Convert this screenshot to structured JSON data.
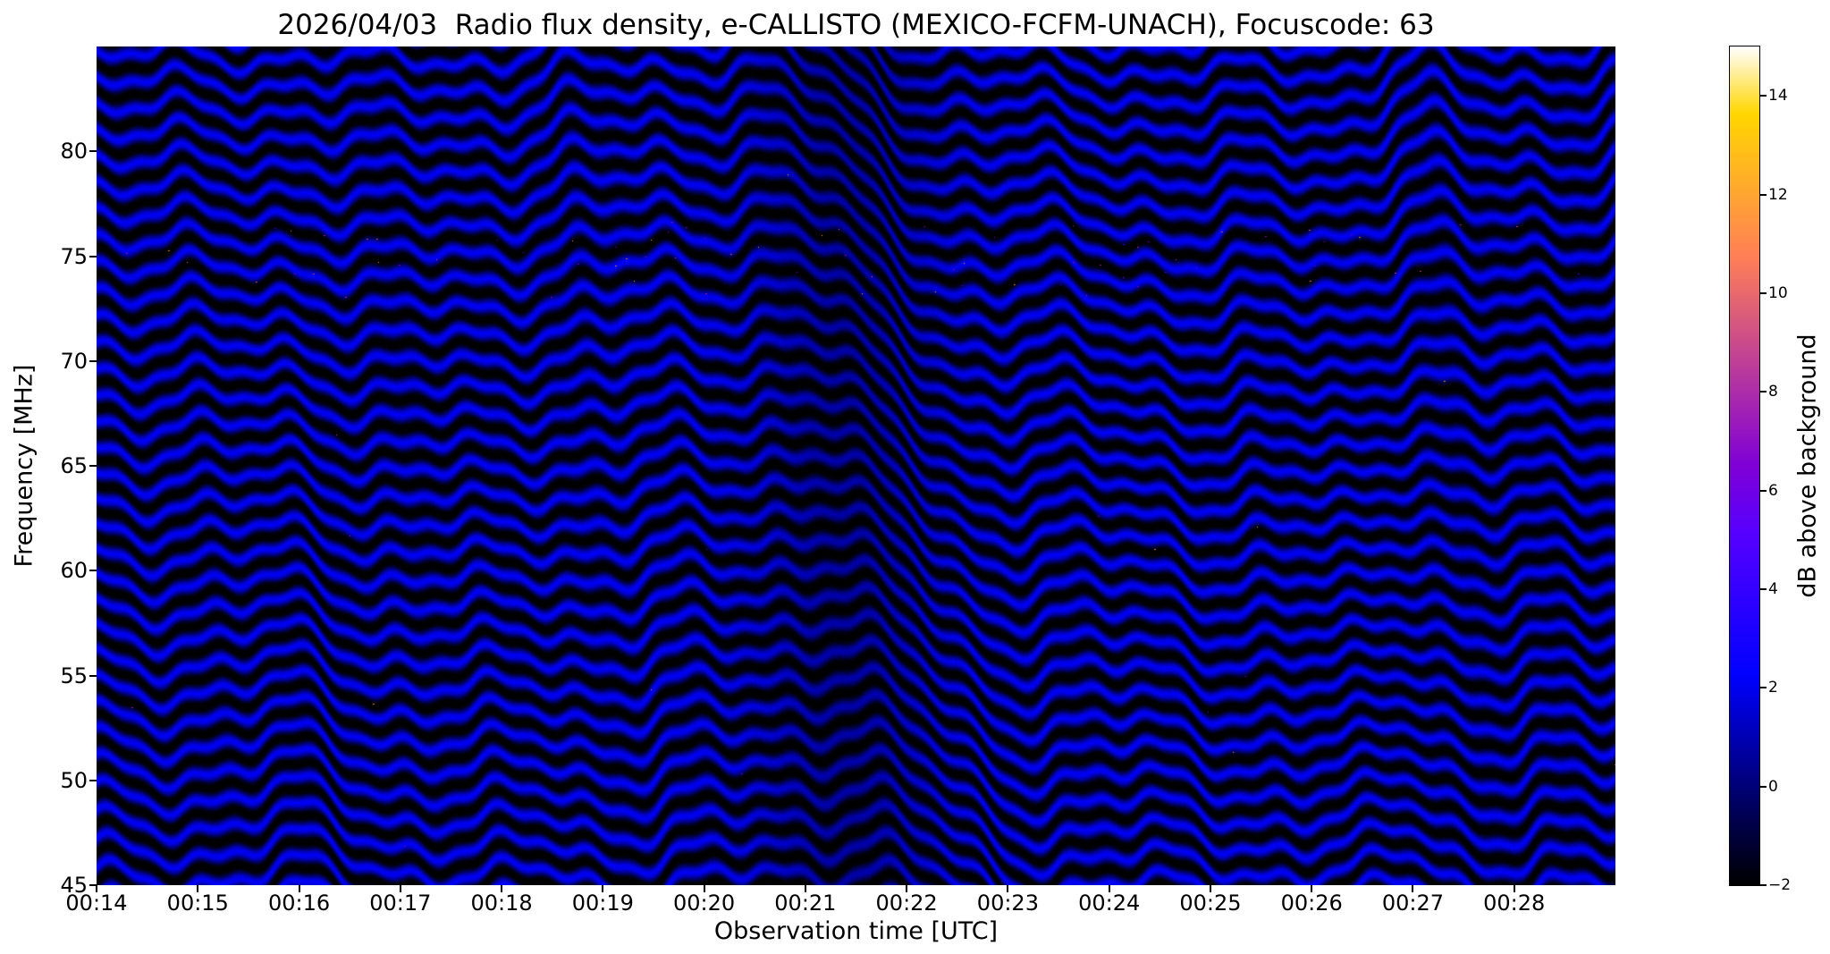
{
  "figure": {
    "background": "#ffffff"
  },
  "chart_data": {
    "type": "heatmap",
    "title": "2026/04/03  Radio flux density, e-CALLISTO (MEXICO-FCFM-UNACH), Focuscode: 63",
    "xlabel": "Observation time [UTC]",
    "ylabel": "Frequency [MHz]",
    "colorbar_label": "dB above background",
    "x_ticks": [
      "00:14",
      "00:15",
      "00:16",
      "00:17",
      "00:18",
      "00:19",
      "00:20",
      "00:21",
      "00:22",
      "00:23",
      "00:24",
      "00:25",
      "00:26",
      "00:27",
      "00:28"
    ],
    "x_range_minutes": [
      0,
      15
    ],
    "y_ticks": [
      80,
      75,
      70,
      65,
      60,
      55,
      50,
      45
    ],
    "y_range": [
      45,
      85
    ],
    "colorbar_ticks": [
      14,
      12,
      10,
      8,
      6,
      4,
      2,
      0,
      -2
    ],
    "colorbar_range": [
      -2,
      15
    ],
    "colormap": "gnuplot2",
    "grid": false,
    "legend": "none",
    "pattern": {
      "band_spacing_mhz": 1.3,
      "band_sharpness": 1.35,
      "value_range_db": [
        -1.9,
        2.3
      ],
      "noise_db": 0.5,
      "seed": 1337,
      "waves": [
        {
          "amp": 0.8,
          "period_min": 9.0,
          "phase": 2.0,
          "fphase": 0.05
        },
        {
          "amp": 0.5,
          "period_min": 2.1,
          "phase": 0.3,
          "fphase": 0.1
        },
        {
          "amp": 0.35,
          "period_min": 0.95,
          "phase": 1.2,
          "fphase": 0.05
        },
        {
          "amp": 0.18,
          "period_min": 0.43,
          "phase": 4.0,
          "fphase": 0.25
        }
      ],
      "bumps": [
        {
          "center_min": 2.05,
          "width_min": 0.5,
          "amp_mhz": -0.8
        },
        {
          "center_min": 4.5,
          "width_min": 0.4,
          "amp_mhz": -0.5
        },
        {
          "center_min": 13.0,
          "width_min": 0.45,
          "amp_mhz": -1.5
        }
      ],
      "drop": {
        "start_min": 6.35,
        "end_min": 8.15,
        "amp_mhz": 5.5,
        "f_delay_min_per_mhz": 0.03
      },
      "dark_patch": {
        "center_min": 7.4,
        "width_min": 0.8,
        "contrast_drop": 0.3
      },
      "speckles": {
        "count": 90,
        "band_freq_mhz": [
          73,
          76.5
        ],
        "value_db": [
          4,
          13
        ]
      }
    }
  }
}
